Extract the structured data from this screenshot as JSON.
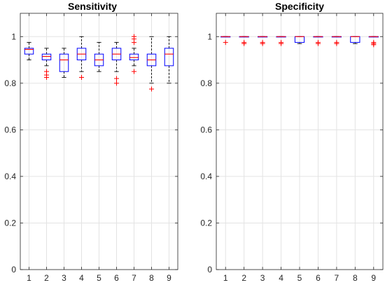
{
  "chart_data": [
    {
      "type": "box",
      "title": "Sensitivity",
      "xlabel": "",
      "ylabel": "",
      "categories": [
        "1",
        "2",
        "3",
        "4",
        "5",
        "6",
        "7",
        "8",
        "9"
      ],
      "ylim": [
        0,
        1.1
      ],
      "yticks": [
        "0",
        "0.2",
        "0.4",
        "0.6",
        "0.8",
        "1"
      ],
      "grid": true,
      "box_color": "#0000ff",
      "median_color": "#ff0000",
      "outlier_color": "#ff0000",
      "whisker_color": "#000000",
      "boxes": [
        {
          "category": "1",
          "whisker_low": 0.9,
          "q1": 0.925,
          "median": 0.945,
          "q3": 0.95,
          "whisker_high": 0.975,
          "outliers": []
        },
        {
          "category": "2",
          "whisker_low": 0.875,
          "q1": 0.9,
          "median": 0.915,
          "q3": 0.925,
          "whisker_high": 0.95,
          "outliers": [
            0.825,
            0.835,
            0.85
          ]
        },
        {
          "category": "3",
          "whisker_low": 0.825,
          "q1": 0.85,
          "median": 0.9,
          "q3": 0.925,
          "whisker_high": 0.95,
          "outliers": []
        },
        {
          "category": "4",
          "whisker_low": 0.85,
          "q1": 0.9,
          "median": 0.925,
          "q3": 0.95,
          "whisker_high": 1.0,
          "outliers": [
            0.825
          ]
        },
        {
          "category": "5",
          "whisker_low": 0.85,
          "q1": 0.875,
          "median": 0.9,
          "q3": 0.925,
          "whisker_high": 0.975,
          "outliers": []
        },
        {
          "category": "6",
          "whisker_low": 0.85,
          "q1": 0.9,
          "median": 0.925,
          "q3": 0.95,
          "whisker_high": 0.975,
          "outliers": [
            0.8,
            0.82
          ]
        },
        {
          "category": "7",
          "whisker_low": 0.875,
          "q1": 0.9,
          "median": 0.91,
          "q3": 0.925,
          "whisker_high": 0.95,
          "outliers": [
            0.85,
            0.975,
            0.99,
            1.0
          ]
        },
        {
          "category": "8",
          "whisker_low": 0.8,
          "q1": 0.875,
          "median": 0.9,
          "q3": 0.925,
          "whisker_high": 1.0,
          "outliers": [
            0.775
          ]
        },
        {
          "category": "9",
          "whisker_low": 0.8,
          "q1": 0.875,
          "median": 0.925,
          "q3": 0.95,
          "whisker_high": 1.0,
          "outliers": []
        }
      ]
    },
    {
      "type": "box",
      "title": "Specificity",
      "xlabel": "",
      "ylabel": "",
      "categories": [
        "1",
        "2",
        "3",
        "4",
        "5",
        "6",
        "7",
        "8",
        "9"
      ],
      "ylim": [
        0,
        1.1
      ],
      "yticks": [
        "0",
        "0.2",
        "0.4",
        "0.6",
        "0.8",
        "1"
      ],
      "grid": true,
      "box_color": "#0000ff",
      "median_color": "#ff0000",
      "outlier_color": "#ff0000",
      "whisker_color": "#000000",
      "boxes": [
        {
          "category": "1",
          "whisker_low": 1.0,
          "q1": 1.0,
          "median": 1.0,
          "q3": 1.0,
          "whisker_high": 1.0,
          "outliers": [
            0.975
          ]
        },
        {
          "category": "2",
          "whisker_low": 1.0,
          "q1": 1.0,
          "median": 1.0,
          "q3": 1.0,
          "whisker_high": 1.0,
          "outliers": [
            0.97,
            0.975
          ]
        },
        {
          "category": "3",
          "whisker_low": 1.0,
          "q1": 1.0,
          "median": 1.0,
          "q3": 1.0,
          "whisker_high": 1.0,
          "outliers": [
            0.97,
            0.975
          ]
        },
        {
          "category": "4",
          "whisker_low": 1.0,
          "q1": 1.0,
          "median": 1.0,
          "q3": 1.0,
          "whisker_high": 1.0,
          "outliers": [
            0.97,
            0.975
          ]
        },
        {
          "category": "5",
          "whisker_low": 0.97,
          "q1": 0.975,
          "median": 1.0,
          "q3": 1.0,
          "whisker_high": 1.0,
          "outliers": []
        },
        {
          "category": "6",
          "whisker_low": 1.0,
          "q1": 1.0,
          "median": 1.0,
          "q3": 1.0,
          "whisker_high": 1.0,
          "outliers": [
            0.97,
            0.975
          ]
        },
        {
          "category": "7",
          "whisker_low": 1.0,
          "q1": 1.0,
          "median": 1.0,
          "q3": 1.0,
          "whisker_high": 1.0,
          "outliers": [
            0.97,
            0.975
          ]
        },
        {
          "category": "8",
          "whisker_low": 0.97,
          "q1": 0.975,
          "median": 1.0,
          "q3": 1.0,
          "whisker_high": 1.0,
          "outliers": []
        },
        {
          "category": "9",
          "whisker_low": 1.0,
          "q1": 1.0,
          "median": 1.0,
          "q3": 1.0,
          "whisker_high": 1.0,
          "outliers": [
            0.965,
            0.97,
            0.975
          ]
        }
      ]
    }
  ]
}
